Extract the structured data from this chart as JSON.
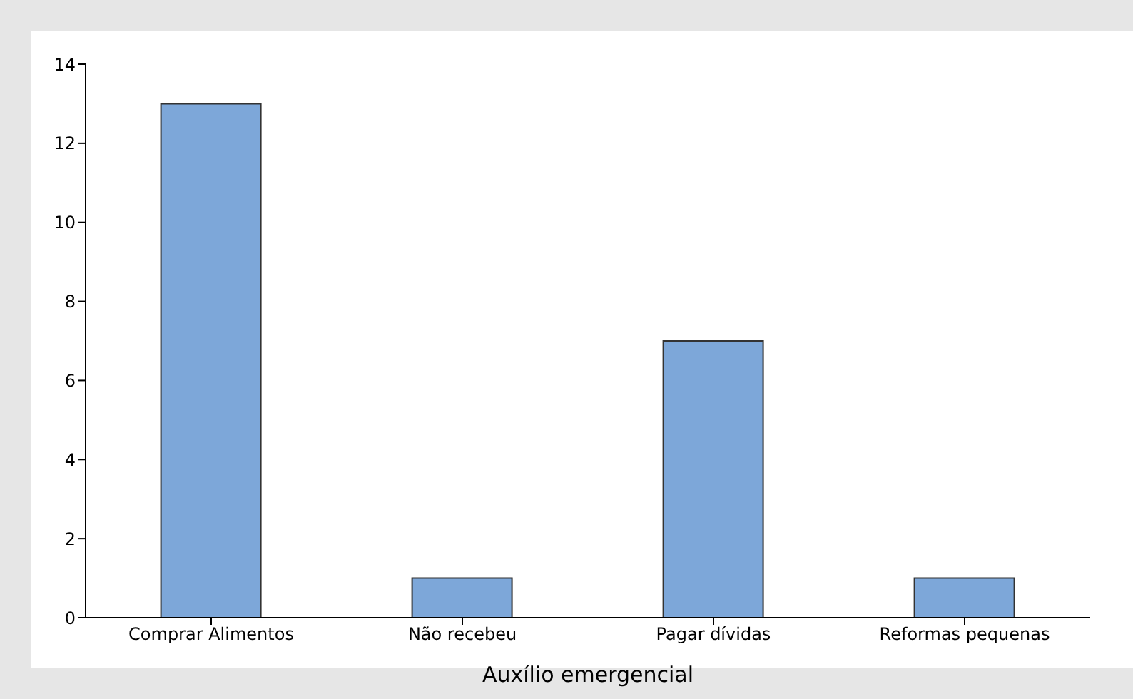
{
  "chart_data": {
    "type": "bar",
    "xlabel": "Auxílio emergencial",
    "categories": [
      "Comprar Alimentos",
      "Não recebeu",
      "Pagar dívidas",
      "Reformas pequenas"
    ],
    "values": [
      13,
      1,
      7,
      1
    ],
    "color": "#7da7d9",
    "ylim": [
      0,
      14
    ],
    "yticks": [
      0,
      2,
      4,
      6,
      8,
      10,
      12,
      14
    ]
  }
}
